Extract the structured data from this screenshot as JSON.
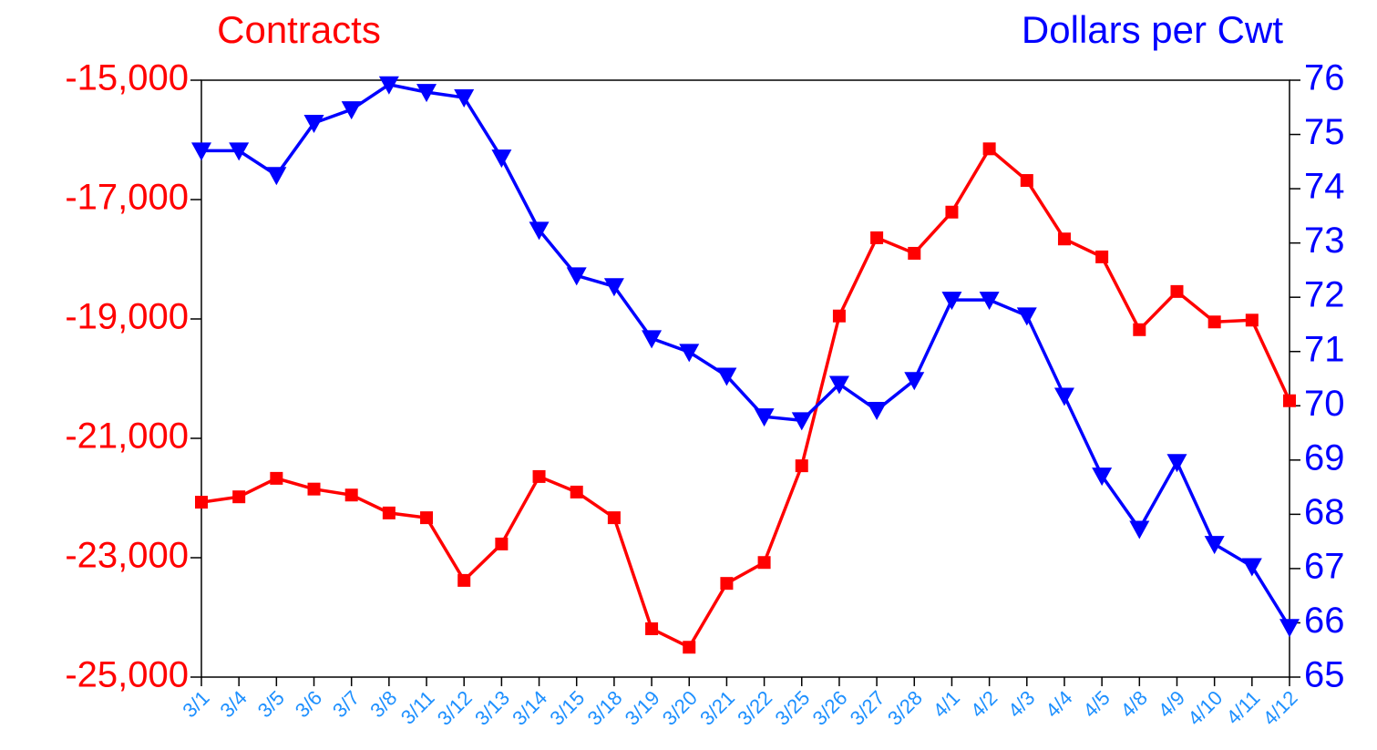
{
  "chart_data": {
    "type": "line",
    "y_label": "Contracts",
    "y2_label": "Dollars per Cwt",
    "categories": [
      "3/1",
      "3/4",
      "3/5",
      "3/6",
      "3/7",
      "3/8",
      "3/11",
      "3/12",
      "3/13",
      "3/14",
      "3/15",
      "3/18",
      "3/19",
      "3/20",
      "3/21",
      "3/22",
      "3/25",
      "3/26",
      "3/27",
      "3/28",
      "4/1",
      "4/2",
      "4/3",
      "4/4",
      "4/5",
      "4/8",
      "4/9",
      "4/10",
      "4/11",
      "4/12"
    ],
    "series": [
      {
        "name": "Contracts",
        "color": "#ff0000",
        "marker": "square",
        "axis": "y",
        "values": [
          -22070,
          -21980,
          -21670,
          -21850,
          -21950,
          -22250,
          -22330,
          -23380,
          -22770,
          -21640,
          -21900,
          -22330,
          -24190,
          -24500,
          -23430,
          -23080,
          -21460,
          -18950,
          -17640,
          -17900,
          -17210,
          -16150,
          -16680,
          -17660,
          -17960,
          -19180,
          -18540,
          -19050,
          -19020,
          -20370
        ]
      },
      {
        "name": "Dollars per Cwt",
        "color": "#0000ff",
        "marker": "triangle-down",
        "axis": "y2",
        "values": [
          74.7,
          74.7,
          74.25,
          75.21,
          75.46,
          75.92,
          75.78,
          75.68,
          74.57,
          73.24,
          72.4,
          72.2,
          71.24,
          70.99,
          70.55,
          69.8,
          69.73,
          70.4,
          69.92,
          70.47,
          71.95,
          71.95,
          71.66,
          70.18,
          68.71,
          67.73,
          68.96,
          67.45,
          67.04,
          65.92
        ]
      }
    ],
    "ylim": [
      -25000,
      -15000
    ],
    "yticks": [
      {
        "value": -25000,
        "label": "-25,000"
      },
      {
        "value": -23000,
        "label": "-23,000"
      },
      {
        "value": -21000,
        "label": "-21,000"
      },
      {
        "value": -19000,
        "label": "-19,000"
      },
      {
        "value": -17000,
        "label": "-17,000"
      },
      {
        "value": -15000,
        "label": "-15,000"
      }
    ],
    "y2lim": [
      65,
      76
    ],
    "y2ticks": [
      65,
      66,
      67,
      68,
      69,
      70,
      71,
      72,
      73,
      74,
      75,
      76
    ],
    "grid": false
  }
}
